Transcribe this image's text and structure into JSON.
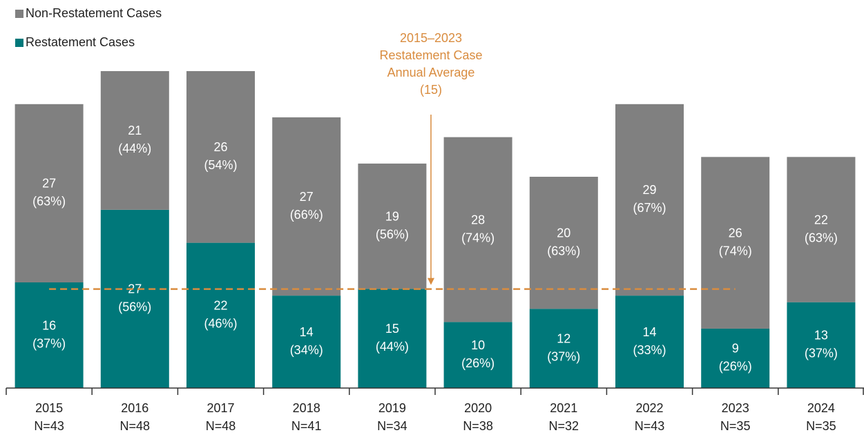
{
  "chart_data": {
    "type": "stacked_bar",
    "categories": [
      "2015",
      "2016",
      "2017",
      "2018",
      "2019",
      "2020",
      "2021",
      "2022",
      "2023",
      "2024"
    ],
    "n_labels": [
      "N=43",
      "N=48",
      "N=48",
      "N=41",
      "N=34",
      "N=38",
      "N=32",
      "N=43",
      "N=35",
      "N=35"
    ],
    "series": [
      {
        "name": "Restatement Cases",
        "color": "#00787a",
        "values": [
          16,
          27,
          22,
          14,
          15,
          10,
          12,
          14,
          9,
          13
        ],
        "percent_labels": [
          "(37%)",
          "(56%)",
          "(46%)",
          "(34%)",
          "(44%)",
          "(26%)",
          "(37%)",
          "(33%)",
          "(26%)",
          "(37%)"
        ]
      },
      {
        "name": "Non-Restatement Cases",
        "color": "#808080",
        "values": [
          27,
          21,
          26,
          27,
          19,
          28,
          20,
          29,
          26,
          22
        ],
        "percent_labels": [
          "(63%)",
          "(44%)",
          "(54%)",
          "(66%)",
          "(56%)",
          "(74%)",
          "(63%)",
          "(67%)",
          "(74%)",
          "(63%)"
        ]
      }
    ],
    "ylim": [
      0,
      48
    ],
    "average": {
      "value": 15,
      "color": "#d98c3f",
      "label_lines": [
        "2015–2023",
        "Restatement Case",
        "Annual Average",
        "(15)"
      ]
    }
  }
}
